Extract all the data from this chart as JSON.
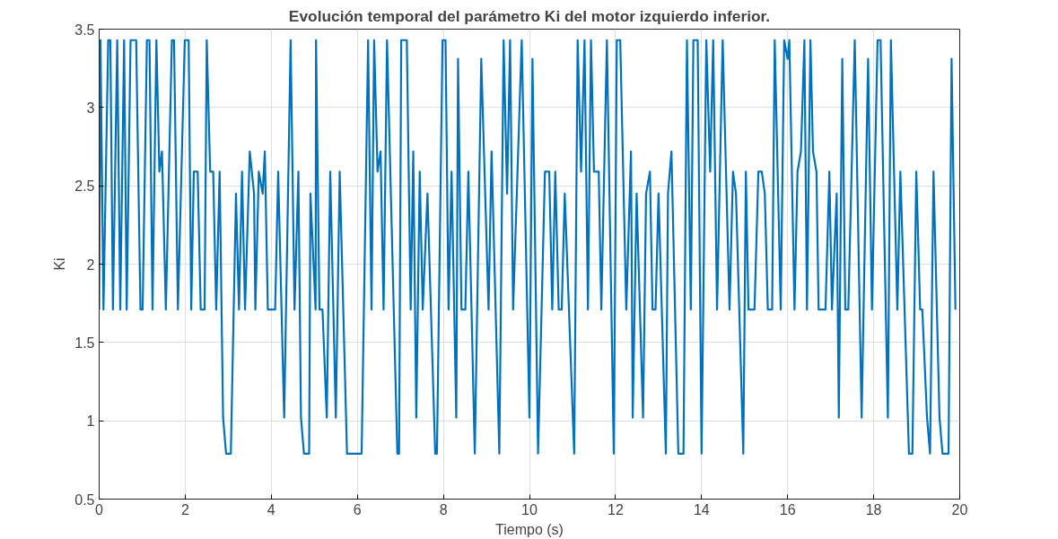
{
  "chart_data": {
    "type": "line",
    "title": "Evolución temporal del parámetro Ki del motor izquierdo inferior.",
    "xlabel": "Tiempo (s)",
    "ylabel": "Ki",
    "x": [
      0,
      0.03,
      0.1,
      0.21,
      0.26,
      0.32,
      0.42,
      0.49,
      0.58,
      0.64,
      0.73,
      0.86,
      0.96,
      1.01,
      1.11,
      1.17,
      1.24,
      1.33,
      1.4,
      1.46,
      1.55,
      1.69,
      1.74,
      1.83,
      1.99,
      2.08,
      2.14,
      2.2,
      2.29,
      2.36,
      2.45,
      2.5,
      2.58,
      2.65,
      2.72,
      2.8,
      2.88,
      2.95,
      3.06,
      3.18,
      3.25,
      3.32,
      3.39,
      3.5,
      3.6,
      3.63,
      3.71,
      3.8,
      3.85,
      3.92,
      4.09,
      4.16,
      4.3,
      4.45,
      4.54,
      4.63,
      4.69,
      4.76,
      4.88,
      4.91,
      5.03,
      5.04,
      5.12,
      5.19,
      5.29,
      5.37,
      5.5,
      5.59,
      5.76,
      6.1,
      6.25,
      6.33,
      6.39,
      6.47,
      6.54,
      6.61,
      6.69,
      6.93,
      6.97,
      7.02,
      7.15,
      7.24,
      7.3,
      7.37,
      7.45,
      7.52,
      7.63,
      7.81,
      7.85,
      7.98,
      8.05,
      8.12,
      8.19,
      8.3,
      8.34,
      8.42,
      8.51,
      8.58,
      8.73,
      8.88,
      9.05,
      9.12,
      9.3,
      9.4,
      9.48,
      9.55,
      9.62,
      9.82,
      10.0,
      10.07,
      10.2,
      10.36,
      10.46,
      10.53,
      10.6,
      10.68,
      10.75,
      10.82,
      11.04,
      11.12,
      11.2,
      11.28,
      11.36,
      11.43,
      11.5,
      11.61,
      11.67,
      11.8,
      11.96,
      12.03,
      12.11,
      12.25,
      12.36,
      12.4,
      12.49,
      12.64,
      12.71,
      12.8,
      12.86,
      12.93,
      13.0,
      13.17,
      13.22,
      13.3,
      13.46,
      13.58,
      13.66,
      13.75,
      13.81,
      13.91,
      14.0,
      14.11,
      14.2,
      14.27,
      14.36,
      14.49,
      14.65,
      14.73,
      14.8,
      14.97,
      15.03,
      15.09,
      15.23,
      15.32,
      15.4,
      15.47,
      15.54,
      15.64,
      15.7,
      15.84,
      15.92,
      16.0,
      16.04,
      16.16,
      16.23,
      16.31,
      16.39,
      16.45,
      16.53,
      16.59,
      16.67,
      16.72,
      16.88,
      16.97,
      17.03,
      17.14,
      17.19,
      17.27,
      17.34,
      17.41,
      17.56,
      17.72,
      17.87,
      17.96,
      18.09,
      18.16,
      18.33,
      18.4,
      18.55,
      18.62,
      18.82,
      18.9,
      18.99,
      19.08,
      19.13,
      19.24,
      19.31,
      19.39,
      19.53,
      19.6,
      19.74,
      19.81,
      19.9
    ],
    "series": [
      {
        "color": "#0072bd",
        "values": [
          1.71,
          3.43,
          1.71,
          3.43,
          3.43,
          1.71,
          3.43,
          1.71,
          3.43,
          1.71,
          3.43,
          3.43,
          1.71,
          1.71,
          3.43,
          3.43,
          1.71,
          3.43,
          2.59,
          2.72,
          1.71,
          3.43,
          3.43,
          1.71,
          3.43,
          3.43,
          1.71,
          2.59,
          2.59,
          1.71,
          1.71,
          3.43,
          2.59,
          2.59,
          1.71,
          2.59,
          1.02,
          0.79,
          0.79,
          2.45,
          1.71,
          2.59,
          1.71,
          2.72,
          2.45,
          1.71,
          2.59,
          2.45,
          2.72,
          1.71,
          1.71,
          2.59,
          1.02,
          3.43,
          1.71,
          2.59,
          1.02,
          0.79,
          0.79,
          2.45,
          1.71,
          3.43,
          1.71,
          1.71,
          1.02,
          2.59,
          1.02,
          2.59,
          0.79,
          0.79,
          3.43,
          1.71,
          3.43,
          2.59,
          2.72,
          1.71,
          3.43,
          0.79,
          0.79,
          3.43,
          3.43,
          1.71,
          2.72,
          1.02,
          2.59,
          1.71,
          2.45,
          0.79,
          0.79,
          3.43,
          3.43,
          1.71,
          2.59,
          1.02,
          3.31,
          1.71,
          1.71,
          2.59,
          0.79,
          3.31,
          1.71,
          2.72,
          0.79,
          3.43,
          2.45,
          3.43,
          1.71,
          3.43,
          1.02,
          3.31,
          0.79,
          2.59,
          2.59,
          1.71,
          2.59,
          1.71,
          1.71,
          2.45,
          0.79,
          3.43,
          2.59,
          3.43,
          1.71,
          3.43,
          2.59,
          2.59,
          1.71,
          3.43,
          0.79,
          3.43,
          3.43,
          1.71,
          2.72,
          1.02,
          2.45,
          1.02,
          2.45,
          2.59,
          1.71,
          1.71,
          2.45,
          0.79,
          2.45,
          2.72,
          0.79,
          0.79,
          3.43,
          1.71,
          3.43,
          3.43,
          0.79,
          3.43,
          2.59,
          3.43,
          1.71,
          3.43,
          1.71,
          2.59,
          2.45,
          0.79,
          2.59,
          1.71,
          1.71,
          2.59,
          2.59,
          2.45,
          1.71,
          1.71,
          3.43,
          1.71,
          3.43,
          3.31,
          3.43,
          1.71,
          2.59,
          2.72,
          3.43,
          1.71,
          3.43,
          2.72,
          2.59,
          1.71,
          1.71,
          2.59,
          1.71,
          2.45,
          1.02,
          3.31,
          1.71,
          1.71,
          3.43,
          1.02,
          3.31,
          1.71,
          3.43,
          3.43,
          1.02,
          3.43,
          1.71,
          2.59,
          0.79,
          0.79,
          2.59,
          1.71,
          1.71,
          1.02,
          0.79,
          2.59,
          1.02,
          0.79,
          0.79,
          3.31,
          1.71
        ]
      }
    ],
    "xlim": [
      0,
      20
    ],
    "ylim": [
      0.5,
      3.5
    ],
    "xticks": [
      0,
      2,
      4,
      6,
      8,
      10,
      12,
      14,
      16,
      18,
      20
    ],
    "yticks": [
      0.5,
      1,
      1.5,
      2,
      2.5,
      3,
      3.5
    ],
    "grid": true,
    "line_style": "solid",
    "marker": "none"
  }
}
